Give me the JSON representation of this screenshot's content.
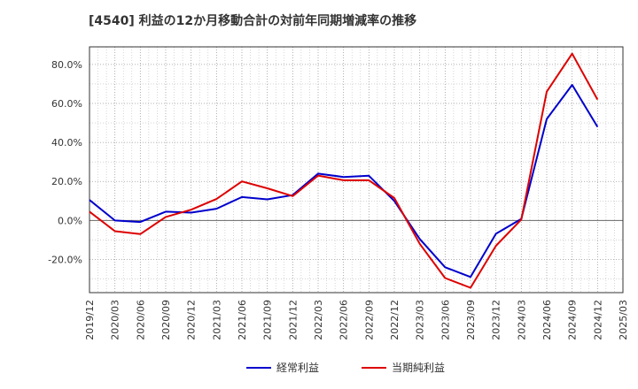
{
  "chart_data": {
    "type": "line",
    "title": "[4540]  利益の12か月移動合計の対前年同期増減率の推移",
    "xlabel": "",
    "ylabel": "",
    "ylim": [
      -37,
      89
    ],
    "yticks": [
      -20,
      0,
      20,
      40,
      60,
      80
    ],
    "ytick_labels": [
      "-20.0%",
      "0.0%",
      "20.0%",
      "40.0%",
      "60.0%",
      "80.0%"
    ],
    "categories": [
      "2019/12",
      "2020/03",
      "2020/06",
      "2020/09",
      "2020/12",
      "2021/03",
      "2021/06",
      "2021/09",
      "2021/12",
      "2022/03",
      "2022/06",
      "2022/09",
      "2022/12",
      "2023/03",
      "2023/06",
      "2023/09",
      "2023/12",
      "2024/03",
      "2024/06",
      "2024/09",
      "2024/12",
      "2025/03"
    ],
    "grid": true,
    "legend_position": "bottom",
    "series": [
      {
        "name": "経常利益",
        "color": "#0000cc",
        "values": [
          10.5,
          0.0,
          -0.8,
          4.5,
          4.0,
          6.0,
          12.0,
          10.8,
          13.0,
          24.0,
          22.3,
          22.9,
          10.0,
          -9.5,
          -24.0,
          -29.0,
          -6.8,
          0.8,
          52.0,
          69.5,
          48.0,
          null
        ]
      },
      {
        "name": "当期純利益",
        "color": "#dd0000",
        "values": [
          4.5,
          -5.5,
          -7.0,
          1.8,
          5.5,
          11.0,
          20.0,
          16.5,
          12.5,
          23.0,
          20.6,
          20.6,
          11.5,
          -12.0,
          -29.5,
          -34.5,
          -13.0,
          0.5,
          66.0,
          85.5,
          62.0,
          null
        ]
      }
    ]
  }
}
